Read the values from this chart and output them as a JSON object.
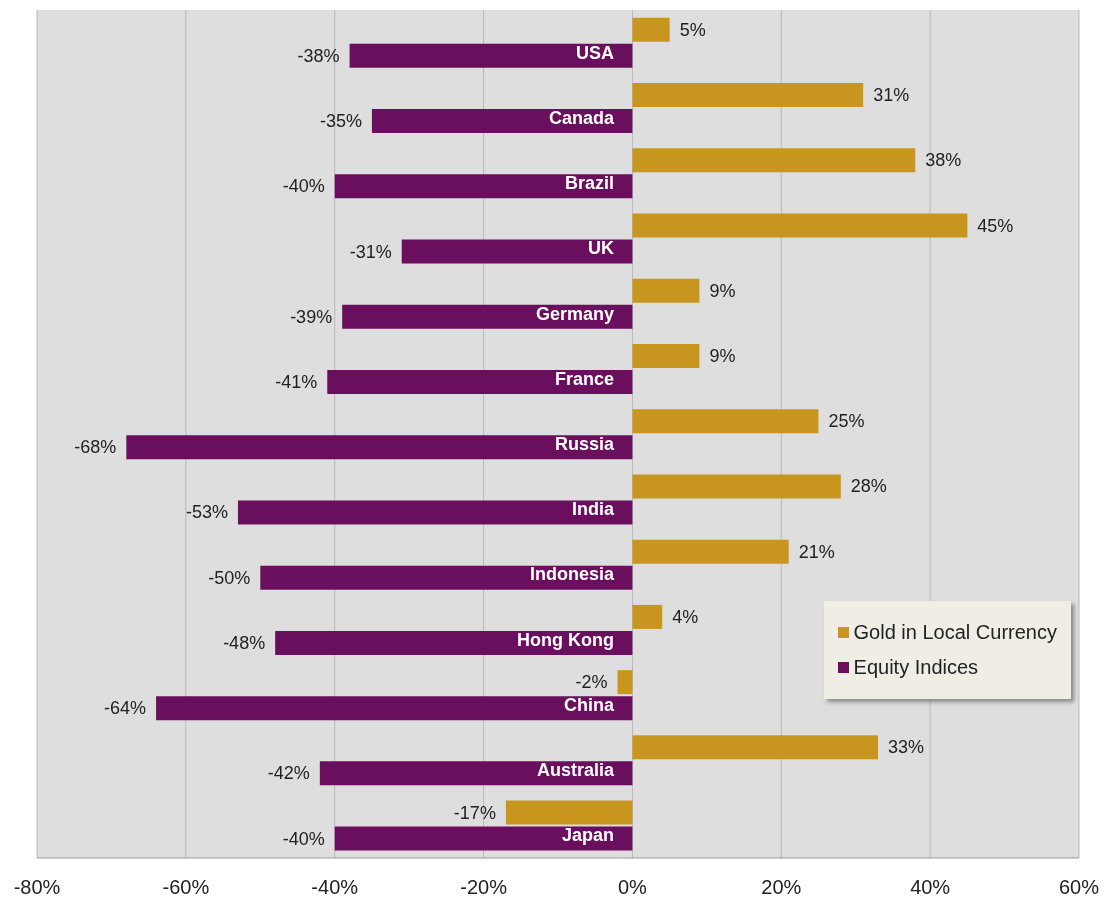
{
  "chart_data": {
    "type": "bar",
    "orientation": "horizontal",
    "categories": [
      "USA",
      "Canada",
      "Brazil",
      "UK",
      "Germany",
      "France",
      "Russia",
      "India",
      "Indonesia",
      "Hong Kong",
      "China",
      "Australia",
      "Japan"
    ],
    "series": [
      {
        "name": "Gold in Local Currency",
        "color": "#c8961e",
        "values": [
          5,
          31,
          38,
          45,
          9,
          9,
          25,
          28,
          21,
          4,
          -2,
          33,
          -17
        ],
        "value_labels": [
          "5%",
          "31%",
          "38%",
          "45%",
          "9%",
          "9%",
          "25%",
          "28%",
          "21%",
          "4%",
          "-2%",
          "33%",
          "-17%"
        ]
      },
      {
        "name": "Equity Indices",
        "color": "#6a0f5e",
        "values": [
          -38,
          -35,
          -40,
          -31,
          -39,
          -41,
          -68,
          -53,
          -50,
          -48,
          -64,
          -42,
          -40
        ],
        "value_labels": [
          "-38%",
          "-35%",
          "-40%",
          "-31%",
          "-39%",
          "-41%",
          "-68%",
          "-53%",
          "-50%",
          "-48%",
          "-64%",
          "-42%",
          "-40%"
        ]
      }
    ],
    "xlim": [
      -80,
      60
    ],
    "xticks": [
      {
        "value": -80,
        "label": "-80%"
      },
      {
        "value": -60,
        "label": "-60%"
      },
      {
        "value": -40,
        "label": "-40%"
      },
      {
        "value": -20,
        "label": "-20%"
      },
      {
        "value": 0,
        "label": "0%"
      },
      {
        "value": 20,
        "label": "20%"
      },
      {
        "value": 40,
        "label": "40%"
      },
      {
        "value": 60,
        "label": "60%"
      }
    ],
    "grid": "x",
    "legend": "bottom right"
  }
}
